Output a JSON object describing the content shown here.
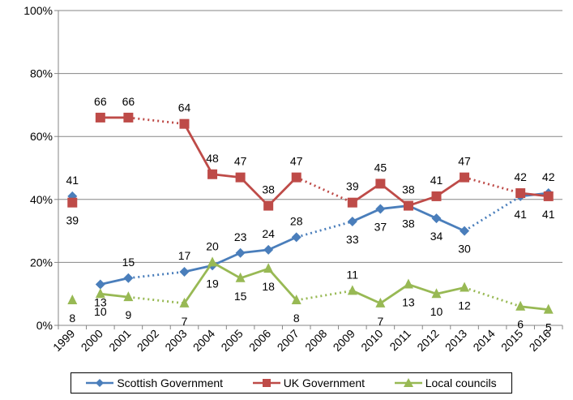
{
  "chart_data": {
    "type": "line",
    "categories": [
      "1999",
      "2000",
      "2001",
      "2002",
      "2003",
      "2004",
      "2005",
      "2006",
      "2007",
      "2008",
      "2009",
      "2010",
      "2011",
      "2012",
      "2013",
      "2014",
      "2015",
      "2016"
    ],
    "ylim": [
      0,
      100
    ],
    "yticks": [
      "0%",
      "20%",
      "40%",
      "60%",
      "80%",
      "100%"
    ],
    "ytick_values": [
      0,
      20,
      40,
      60,
      80,
      100
    ],
    "grid": "horizontal",
    "legend_position": "bottom",
    "series": [
      {
        "name": "Scottish Government",
        "color": "#4a7ebb",
        "marker": "diamond",
        "values": [
          41,
          13,
          15,
          null,
          17,
          19,
          23,
          24,
          28,
          null,
          33,
          37,
          38,
          34,
          30,
          null,
          41,
          42
        ],
        "labels": [
          "41",
          "13",
          "15",
          "",
          "17",
          "19",
          "23",
          "24",
          "28",
          "",
          "33",
          "37",
          "38",
          "34",
          "30",
          "",
          "41",
          "42"
        ]
      },
      {
        "name": "UK Government",
        "color": "#be4b48",
        "marker": "square",
        "values": [
          39,
          66,
          66,
          null,
          64,
          48,
          47,
          38,
          47,
          null,
          39,
          45,
          38,
          41,
          47,
          null,
          42,
          41
        ],
        "labels": [
          "39",
          "66",
          "66",
          "",
          "64",
          "48",
          "47",
          "38",
          "47",
          "",
          "39",
          "45",
          "38",
          "41",
          "47",
          "",
          "42",
          "41"
        ]
      },
      {
        "name": "Local councils",
        "color": "#98b954",
        "marker": "triangle",
        "values": [
          8,
          10,
          9,
          null,
          7,
          20,
          15,
          18,
          8,
          null,
          11,
          7,
          13,
          10,
          12,
          null,
          6,
          5
        ],
        "labels": [
          "8",
          "10",
          "9",
          "",
          "7",
          "20",
          "15",
          "18",
          "8",
          "",
          "11",
          "7",
          "13",
          "10",
          "12",
          "",
          "6",
          "5"
        ]
      }
    ]
  }
}
